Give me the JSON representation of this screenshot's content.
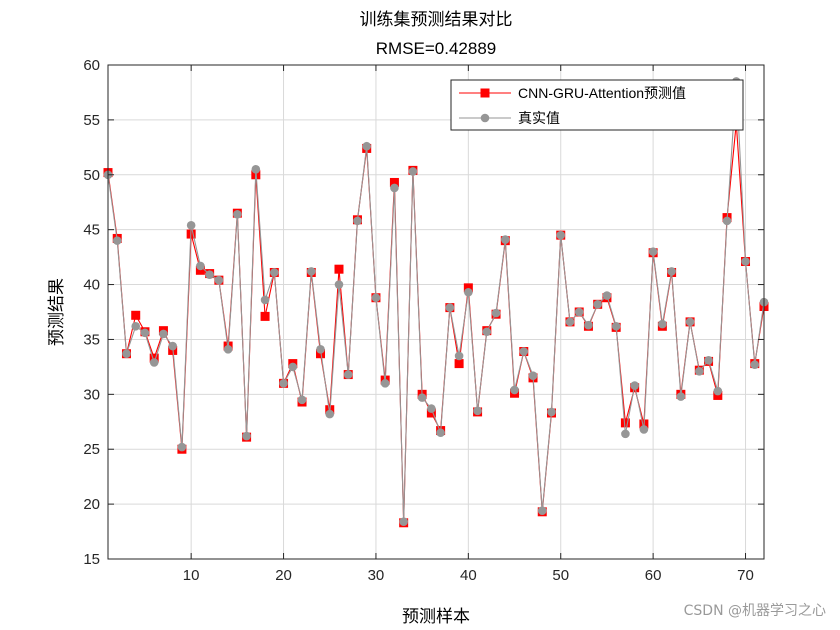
{
  "chart_data": {
    "type": "line",
    "title": "训练集预测结果对比",
    "subtitle": "RMSE=0.42889",
    "xlabel": "预测样本",
    "ylabel": "预测结果",
    "xlim": [
      1,
      72
    ],
    "ylim": [
      15,
      60
    ],
    "xticks": [
      10,
      20,
      30,
      40,
      50,
      60,
      70
    ],
    "yticks": [
      15,
      20,
      25,
      30,
      35,
      40,
      45,
      50,
      55,
      60
    ],
    "grid": true,
    "legend_position": "top-right",
    "x": [
      1,
      2,
      3,
      4,
      5,
      6,
      7,
      8,
      9,
      10,
      11,
      12,
      13,
      14,
      15,
      16,
      17,
      18,
      19,
      20,
      21,
      22,
      23,
      24,
      25,
      26,
      27,
      28,
      29,
      30,
      31,
      32,
      33,
      34,
      35,
      36,
      37,
      38,
      39,
      40,
      41,
      42,
      43,
      44,
      45,
      46,
      47,
      48,
      49,
      50,
      51,
      52,
      53,
      54,
      55,
      56,
      57,
      58,
      59,
      60,
      61,
      62,
      63,
      64,
      65,
      66,
      67,
      68,
      69,
      70,
      71,
      72
    ],
    "series": [
      {
        "name": "CNN-GRU-Attention预测值",
        "color": "#ff0000",
        "marker": "square",
        "values": [
          50.2,
          44.2,
          33.7,
          37.2,
          35.7,
          33.3,
          35.8,
          34.0,
          25.0,
          44.6,
          41.3,
          41.0,
          40.4,
          34.4,
          46.5,
          26.1,
          50.0,
          37.1,
          41.1,
          31.0,
          32.8,
          29.3,
          41.1,
          33.7,
          28.6,
          41.4,
          31.8,
          45.9,
          52.4,
          38.8,
          31.3,
          49.3,
          18.3,
          50.4,
          30.0,
          28.3,
          26.7,
          37.9,
          32.8,
          39.7,
          28.4,
          35.8,
          37.3,
          44.0,
          30.1,
          33.9,
          31.5,
          19.3,
          28.3,
          44.5,
          36.6,
          37.5,
          36.2,
          38.2,
          38.8,
          36.1,
          27.4,
          30.6,
          27.3,
          42.9,
          36.2,
          41.1,
          30.0,
          36.6,
          32.2,
          33.0,
          29.9,
          46.1,
          54.7,
          42.1,
          32.8,
          38.0
        ]
      },
      {
        "name": "真实值",
        "color": "#969696",
        "marker": "circle",
        "values": [
          50.0,
          44.0,
          33.7,
          36.2,
          35.6,
          32.9,
          35.5,
          34.4,
          25.2,
          45.4,
          41.7,
          40.9,
          40.4,
          34.1,
          46.4,
          26.2,
          50.5,
          38.6,
          41.1,
          31.0,
          32.5,
          29.5,
          41.2,
          34.1,
          28.2,
          40.0,
          31.8,
          45.8,
          52.6,
          38.8,
          31.0,
          48.8,
          18.4,
          50.3,
          29.7,
          28.7,
          26.5,
          37.9,
          33.5,
          39.3,
          28.5,
          35.7,
          37.4,
          44.1,
          30.4,
          33.9,
          31.7,
          19.4,
          28.4,
          44.5,
          36.6,
          37.5,
          36.3,
          38.2,
          39.0,
          36.2,
          26.4,
          30.8,
          26.8,
          43.0,
          36.4,
          41.2,
          29.8,
          36.6,
          32.1,
          33.1,
          30.3,
          45.8,
          58.5,
          42.1,
          32.7,
          38.4
        ]
      }
    ]
  },
  "watermark": "CSDN @机器学习之心"
}
